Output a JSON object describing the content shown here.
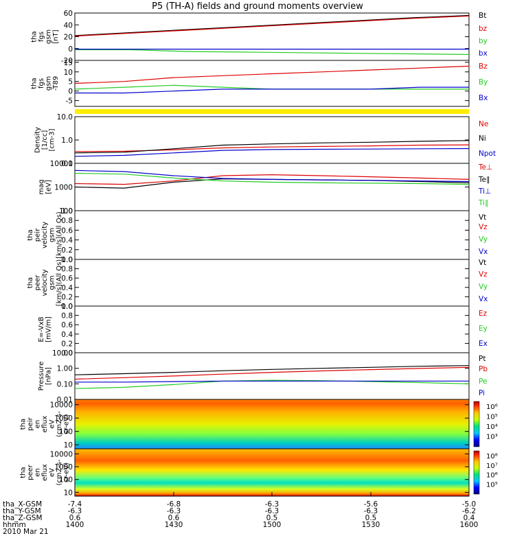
{
  "title": "P5 (TH-A) fields and ground moments overview",
  "colors": {
    "black": "#000000",
    "red": "#dd0000",
    "green": "#22cc22",
    "blue": "#0000cc",
    "yellow": "#ffee00"
  },
  "chart_data": [
    {
      "type": "line",
      "panel": "fgs",
      "ylabel": [
        "tha",
        "fgs",
        "gsm",
        "[nT]"
      ],
      "yticks": [
        "60",
        "40",
        "20",
        "0",
        "-20"
      ],
      "ylim": [
        -20,
        60
      ],
      "series": [
        {
          "name": "Bt",
          "color": "black",
          "values": [
            22,
            27,
            32,
            37,
            42,
            47,
            52,
            56
          ]
        },
        {
          "name": "bz",
          "color": "red",
          "values": [
            21,
            26,
            31,
            36,
            41,
            46,
            51,
            55
          ]
        },
        {
          "name": "by",
          "color": "green",
          "values": [
            -2,
            -2,
            -5,
            -6,
            -7,
            -8,
            -9,
            -10
          ]
        },
        {
          "name": "bx",
          "color": "blue",
          "values": [
            -1,
            -1,
            -1,
            -1,
            -1,
            -1,
            -1,
            -1
          ]
        }
      ]
    },
    {
      "type": "line",
      "panel": "fgs-dp",
      "ylabel": [
        "tha",
        "fgs",
        "gsm",
        "-T89"
      ],
      "yticks": [
        "15",
        "10",
        "5",
        "0",
        "-5"
      ],
      "ylim": [
        -8,
        16
      ],
      "series": [
        {
          "name": "Bz",
          "color": "red",
          "values": [
            4,
            5,
            7,
            8,
            9,
            10,
            11,
            12,
            13
          ]
        },
        {
          "name": "By",
          "color": "green",
          "values": [
            1,
            2,
            3,
            2,
            1,
            1,
            1,
            1,
            1
          ]
        },
        {
          "name": "Bx",
          "color": "blue",
          "values": [
            -1,
            -1,
            0,
            1,
            1,
            1,
            1,
            2,
            2
          ]
        }
      ]
    },
    {
      "type": "line",
      "panel": "density",
      "ylabel": [
        "Density",
        "[1/cc]",
        "[cm-3]"
      ],
      "yticks": [
        "10.0",
        "1.0",
        "0.1"
      ],
      "ylim": [
        0.1,
        10
      ],
      "log": true,
      "series": [
        {
          "name": "Ne",
          "color": "red",
          "values": [
            0.32,
            0.33,
            0.38,
            0.46,
            0.5,
            0.53,
            0.56,
            0.6,
            0.62
          ]
        },
        {
          "name": "Ni",
          "color": "black",
          "values": [
            0.28,
            0.3,
            0.42,
            0.6,
            0.68,
            0.75,
            0.8,
            0.88,
            0.95
          ]
        },
        {
          "name": "Npot",
          "color": "blue",
          "values": [
            0.2,
            0.22,
            0.28,
            0.36,
            0.39,
            0.4,
            0.41,
            0.42,
            0.43
          ]
        }
      ]
    },
    {
      "type": "line",
      "panel": "temperature",
      "ylabel": [
        "mag",
        "[eV]"
      ],
      "yticks": [
        "10000",
        "1000",
        "100"
      ],
      "ylim": [
        100,
        10000
      ],
      "log": true,
      "series": [
        {
          "name": "Te⊥",
          "color": "red",
          "values": [
            1400,
            1300,
            1800,
            3000,
            3300,
            3000,
            2700,
            2400,
            2100
          ]
        },
        {
          "name": "Te∥",
          "color": "black",
          "values": [
            1000,
            900,
            1600,
            2200,
            2100,
            2000,
            1900,
            1700,
            1500
          ]
        },
        {
          "name": "Ti⊥",
          "color": "blue",
          "values": [
            5000,
            4500,
            3000,
            2300,
            2100,
            2000,
            1900,
            1800,
            1700
          ]
        },
        {
          "name": "Ti∥",
          "color": "green",
          "values": [
            3800,
            3500,
            2400,
            1800,
            1600,
            1500,
            1450,
            1400,
            1300
          ]
        }
      ]
    },
    {
      "type": "line",
      "panel": "peir-velocity",
      "ylabel": [
        "tha",
        "peir",
        "velocity",
        "gsm",
        "[km/s](All Qs)"
      ],
      "yticks": [
        "1.0",
        "0.8",
        "0.6",
        "0.4",
        "0.2",
        "0.0"
      ],
      "ylim": [
        0,
        1
      ],
      "legend": [
        "Vt",
        "Vz",
        "Vy",
        "Vx"
      ]
    },
    {
      "type": "line",
      "panel": "peer-velocity",
      "ylabel": [
        "tha",
        "peer",
        "velocity",
        "gsm",
        "[km/s](All Qs)"
      ],
      "yticks": [
        "1.0",
        "0.8",
        "0.6",
        "0.4",
        "0.2",
        "0.0"
      ],
      "ylim": [
        0,
        1
      ],
      "legend": [
        "Vt",
        "Vz",
        "Vy",
        "Vx"
      ]
    },
    {
      "type": "line",
      "panel": "efield",
      "ylabel": [
        "E=-VxB",
        "[mV/m]"
      ],
      "yticks": [
        "1.0",
        "0.8",
        "0.6",
        "0.4",
        "0.2",
        "0.0"
      ],
      "ylim": [
        0,
        1
      ],
      "legend": [
        "Ez",
        "Ey",
        "Ex"
      ]
    },
    {
      "type": "line",
      "panel": "pressure",
      "ylabel": [
        "Pressure",
        "[nPa]"
      ],
      "yticks": [
        "10.00",
        "1.00",
        "0.10",
        "0.01"
      ],
      "ylim": [
        0.01,
        10
      ],
      "log": true,
      "series": [
        {
          "name": "Pt",
          "color": "black",
          "values": [
            0.38,
            0.45,
            0.55,
            0.7,
            0.85,
            1.0,
            1.15,
            1.35,
            1.5
          ]
        },
        {
          "name": "Pb",
          "color": "red",
          "values": [
            0.2,
            0.25,
            0.32,
            0.42,
            0.55,
            0.68,
            0.82,
            0.98,
            1.15
          ]
        },
        {
          "name": "Pe",
          "color": "green",
          "values": [
            0.05,
            0.06,
            0.09,
            0.15,
            0.17,
            0.16,
            0.14,
            0.12,
            0.1
          ]
        },
        {
          "name": "Pi",
          "color": "blue",
          "values": [
            0.13,
            0.13,
            0.14,
            0.15,
            0.15,
            0.15,
            0.15,
            0.15,
            0.15
          ]
        }
      ]
    },
    {
      "type": "heatmap",
      "panel": "peir-spectrogram",
      "ylabel": [
        "tha",
        "peir",
        "en",
        "eflux",
        "eV",
        "(cm2-s-",
        "sr-eV)"
      ],
      "yticks": [
        "10000",
        "1000",
        "100",
        "10"
      ],
      "ylim": [
        5,
        25000
      ],
      "log": true,
      "colorbar_ticks": [
        "10⁶",
        "10⁵",
        "10⁴",
        "10³"
      ]
    },
    {
      "type": "heatmap",
      "panel": "peer-spectrogram",
      "ylabel": [
        "tha",
        "peer",
        "en",
        "eflux",
        "eV",
        "(cm2-s-",
        "sr-eV)"
      ],
      "yticks": [
        "10000",
        "1000",
        "100",
        "10"
      ],
      "ylim": [
        5,
        25000
      ],
      "log": true,
      "colorbar_ticks": [
        "10⁸",
        "10⁷",
        "10⁶",
        "10⁵"
      ]
    }
  ],
  "xaxis": {
    "rows": [
      {
        "label": "tha_X-GSM",
        "values": [
          "-7.4",
          "-6.8",
          "-6.3",
          "-5.6",
          "-5.0"
        ]
      },
      {
        "label": "tha_Y-GSM",
        "values": [
          "-6.3",
          "-6.3",
          "-6.3",
          "-6.3",
          "-6.2"
        ]
      },
      {
        "label": "tha_Z-GSM",
        "values": [
          "0.6",
          "0.6",
          "0.5",
          "0.5",
          "0.4"
        ]
      },
      {
        "label": "hhmm",
        "values": [
          "1400",
          "1430",
          "1500",
          "1530",
          "1600"
        ]
      }
    ],
    "date": "2010 Mar 21"
  }
}
